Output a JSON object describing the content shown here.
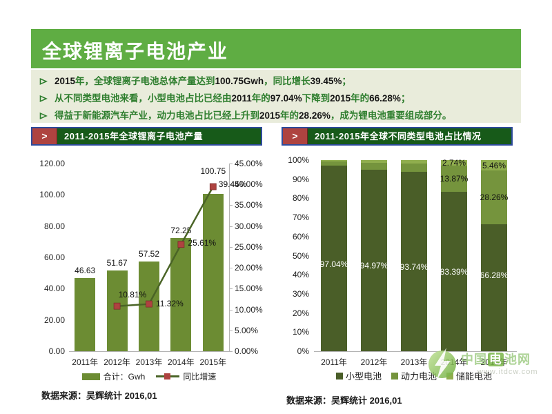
{
  "slide": {
    "title": "全球锂离子电池产业",
    "bullets": [
      {
        "segments": [
          {
            "text": "2015",
            "num": true
          },
          {
            "text": "年，全球锂离子电池总体产量达到"
          },
          {
            "text": "100.75Gwh",
            "num": true
          },
          {
            "text": "，同比增长"
          },
          {
            "text": "39.45%",
            "num": true
          },
          {
            "text": "；"
          }
        ]
      },
      {
        "segments": [
          {
            "text": "从不同类型电池来看，小型电池占比已经由"
          },
          {
            "text": "2011",
            "num": true
          },
          {
            "text": "年的"
          },
          {
            "text": "97.04%",
            "num": true
          },
          {
            "text": "下降到"
          },
          {
            "text": "2015",
            "num": true
          },
          {
            "text": "年的"
          },
          {
            "text": "66.28%",
            "num": true
          },
          {
            "text": "；"
          }
        ]
      },
      {
        "segments": [
          {
            "text": "得益于新能源汽车产业，动力电池占比已经上升到"
          },
          {
            "text": "2015",
            "num": true
          },
          {
            "text": "年的"
          },
          {
            "text": "28.26%",
            "num": true
          },
          {
            "text": "，成为锂电池重要组成部分。"
          }
        ]
      }
    ],
    "source_left": "数据来源：吴辉统计 2016,01",
    "source_right": "数据来源：吴辉统计 2016,01"
  },
  "panels": {
    "left": {
      "marker": ">",
      "title": "2011-2015年全球锂离子电池产量"
    },
    "right": {
      "marker": ">",
      "title": "2011-2015年全球不同类型电池占比情况"
    }
  },
  "watermark": {
    "prefix": "中国",
    "boxed": "电",
    "suffix": "池网",
    "url": "www.itdcw.com"
  },
  "colors": {
    "header_green": "#5fad43",
    "bullet_bg": "#e9ecdb",
    "bullet_text": "#2e7e2e",
    "number_text": "#141414",
    "panel_title_bg": "#175a19",
    "panel_title_border": "#2e4b9b",
    "panel_marker_red": "#ae4340",
    "bar_green": "#6c8c33",
    "line_dark_green": "#4a6426",
    "marker_red": "#ae4340",
    "stack_small": "#4a5e28",
    "stack_power": "#75943d",
    "stack_storage": "#90ae4e",
    "axis_line": "#b3b3b3",
    "label_dark": "#111111",
    "label_white": "#ffffff"
  },
  "chart_data": [
    {
      "type": "bar",
      "subtype": "combo bar + line, dual axis",
      "title": "2011-2015年全球锂离子电池产量",
      "categories": [
        "2011年",
        "2012年",
        "2013年",
        "2014年",
        "2015年"
      ],
      "series": [
        {
          "name": "合计：Gwh",
          "type": "bar",
          "axis": "left",
          "values": [
            46.63,
            51.67,
            57.52,
            72.25,
            100.75
          ],
          "data_labels": [
            "46.63",
            "51.67",
            "57.52",
            "72.25",
            "100.75"
          ]
        },
        {
          "name": "同比增速",
          "type": "line",
          "axis": "right",
          "values": [
            null,
            10.81,
            11.32,
            25.61,
            39.45
          ],
          "data_labels": [
            null,
            "10.81%",
            "11.32%",
            "25.61%",
            "39.45%"
          ]
        }
      ],
      "left_axis": {
        "min": 0,
        "max": 120,
        "step": 20,
        "tick_labels": [
          "0.00",
          "20.00",
          "40.00",
          "60.00",
          "80.00",
          "100.00",
          "120.00"
        ]
      },
      "right_axis": {
        "min": 0,
        "max": 45,
        "step": 5,
        "tick_labels": [
          "0.00%",
          "5.00%",
          "10.00%",
          "15.00%",
          "20.00%",
          "25.00%",
          "30.00%",
          "35.00%",
          "40.00%",
          "45.00%"
        ]
      },
      "legend": {
        "position": "bottom",
        "entries": [
          "合计：Gwh",
          "同比增速"
        ]
      },
      "grid": false
    },
    {
      "type": "bar",
      "subtype": "stacked-100",
      "title": "2011-2015年全球不同类型电池占比情况",
      "categories": [
        "2011年",
        "2012年",
        "2013年",
        "2014年",
        "2015年"
      ],
      "series": [
        {
          "name": "小型电池",
          "values": [
            97.04,
            94.97,
            93.74,
            83.39,
            66.28
          ],
          "data_labels": [
            "97.04%",
            "94.97%",
            "93.74%",
            "83.39%",
            "66.28%"
          ]
        },
        {
          "name": "动力电池",
          "values": [
            2.2,
            3.6,
            4.4,
            13.87,
            28.26
          ],
          "data_labels": [
            null,
            null,
            null,
            "13.87%",
            "28.26%"
          ]
        },
        {
          "name": "储能电池",
          "values": [
            0.76,
            1.43,
            1.86,
            2.74,
            5.46
          ],
          "data_labels": [
            null,
            null,
            null,
            "2.74%",
            "5.46%"
          ]
        }
      ],
      "y_axis": {
        "min": 0,
        "max": 100,
        "step": 10,
        "tick_labels": [
          "0%",
          "10%",
          "20%",
          "30%",
          "40%",
          "50%",
          "60%",
          "70%",
          "80%",
          "90%",
          "100%"
        ]
      },
      "legend": {
        "position": "bottom",
        "entries": [
          "小型电池",
          "动力电池",
          "储能电池"
        ]
      },
      "grid": false
    }
  ]
}
